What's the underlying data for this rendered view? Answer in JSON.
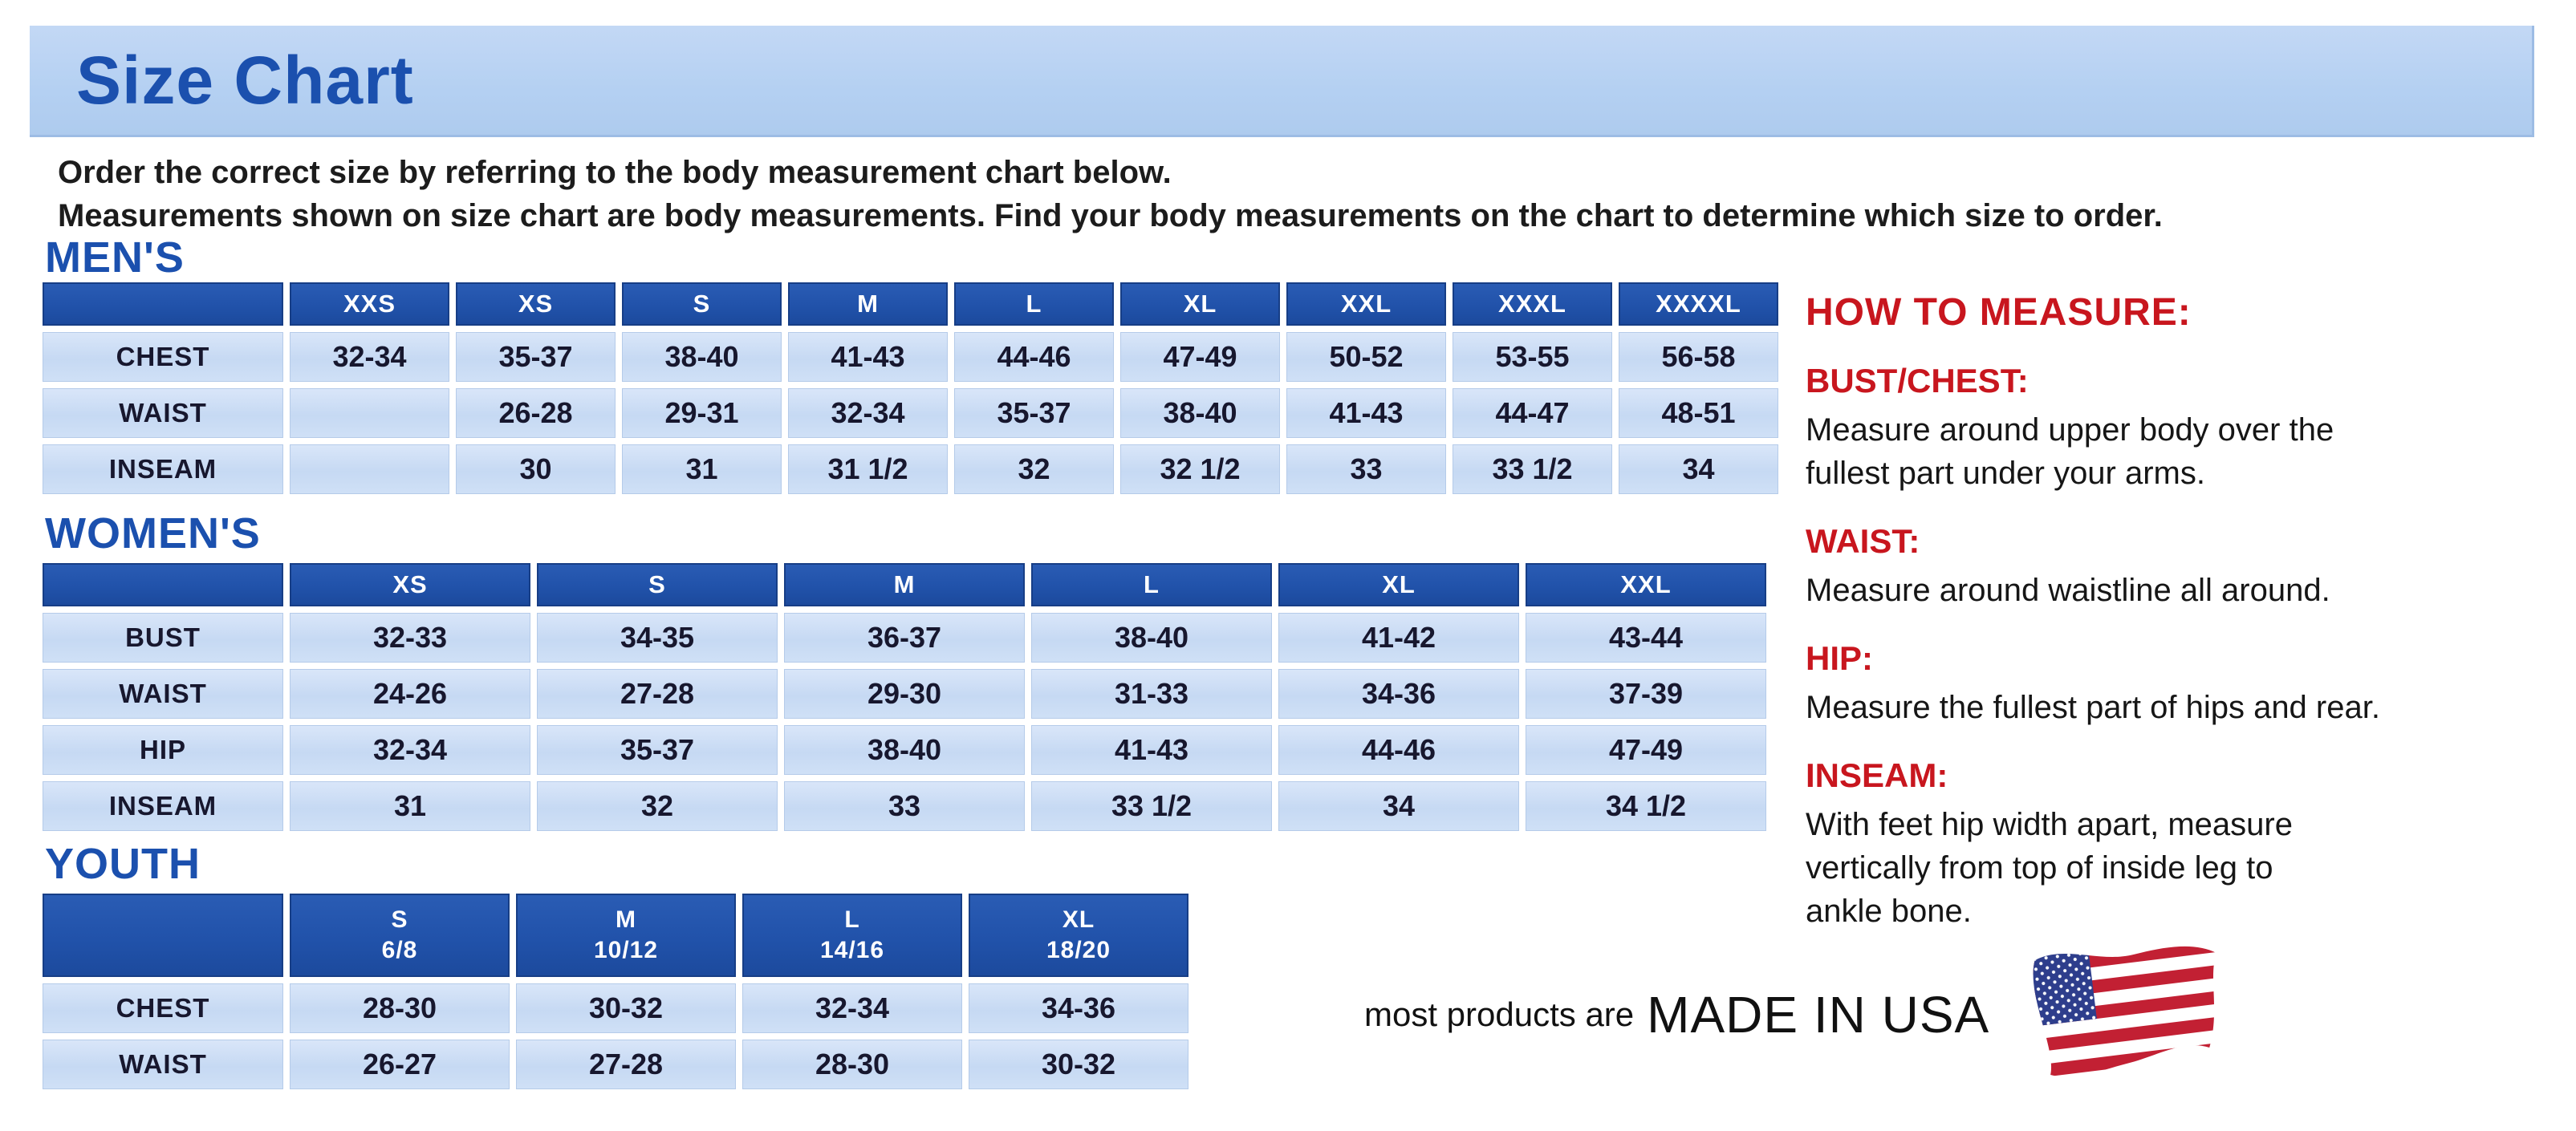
{
  "page": {
    "title": "Size Chart",
    "intro_line1": "Order the correct size by referring to the body measurement chart below.",
    "intro_line2": "Measurements shown on size chart are body measurements.  Find your body measurements on the chart to determine which size to order."
  },
  "colors": {
    "banner_bg": "#b4d0f2",
    "heading_blue": "#1b50ae",
    "table_header_blue": "#2152aa",
    "table_cell_blue": "#c6d9f3",
    "accent_red": "#c8161e",
    "text_black": "#141414",
    "flag_red": "#c22033",
    "flag_blue": "#2e3e8c"
  },
  "tables": {
    "mens": {
      "heading": "MEN'S",
      "columns": [
        "XXS",
        "XS",
        "S",
        "M",
        "L",
        "XL",
        "XXL",
        "XXXL",
        "XXXXL"
      ],
      "rows": [
        {
          "label": "CHEST",
          "values": [
            "32-34",
            "35-37",
            "38-40",
            "41-43",
            "44-46",
            "47-49",
            "50-52",
            "53-55",
            "56-58"
          ]
        },
        {
          "label": "WAIST",
          "values": [
            "",
            "26-28",
            "29-31",
            "32-34",
            "35-37",
            "38-40",
            "41-43",
            "44-47",
            "48-51"
          ]
        },
        {
          "label": "INSEAM",
          "values": [
            "",
            "30",
            "31",
            "31 1/2",
            "32",
            "32 1/2",
            "33",
            "33 1/2",
            "34"
          ]
        }
      ]
    },
    "womens": {
      "heading": "WOMEN'S",
      "columns": [
        "XS",
        "S",
        "M",
        "L",
        "XL",
        "XXL"
      ],
      "rows": [
        {
          "label": "BUST",
          "values": [
            "32-33",
            "34-35",
            "36-37",
            "38-40",
            "41-42",
            "43-44"
          ]
        },
        {
          "label": "WAIST",
          "values": [
            "24-26",
            "27-28",
            "29-30",
            "31-33",
            "34-36",
            "37-39"
          ]
        },
        {
          "label": "HIP",
          "values": [
            "32-34",
            "35-37",
            "38-40",
            "41-43",
            "44-46",
            "47-49"
          ]
        },
        {
          "label": "INSEAM",
          "values": [
            "31",
            "32",
            "33",
            "33 1/2",
            "34",
            "34 1/2"
          ]
        }
      ]
    },
    "youth": {
      "heading": "YOUTH",
      "columns": [
        {
          "size": "S",
          "range": "6/8"
        },
        {
          "size": "M",
          "range": "10/12"
        },
        {
          "size": "L",
          "range": "14/16"
        },
        {
          "size": "XL",
          "range": "18/20"
        }
      ],
      "rows": [
        {
          "label": "CHEST",
          "values": [
            "28-30",
            "30-32",
            "32-34",
            "34-36"
          ]
        },
        {
          "label": "WAIST",
          "values": [
            "26-27",
            "27-28",
            "28-30",
            "30-32"
          ]
        }
      ]
    }
  },
  "how_to_measure": {
    "heading": "HOW TO MEASURE:",
    "items": [
      {
        "label": "BUST/CHEST:",
        "text": "Measure around upper body over the\nfullest part under your arms."
      },
      {
        "label": "WAIST:",
        "text": "Measure around waistline all around."
      },
      {
        "label": "HIP:",
        "text": "Measure the fullest part of hips and rear."
      },
      {
        "label": "INSEAM:",
        "text": "With feet hip width apart, measure\nvertically from top of inside leg to\nankle bone."
      }
    ]
  },
  "footer": {
    "prefix": "most products are",
    "made_in": "MADE IN USA",
    "flag_icon": "us-flag-icon"
  }
}
